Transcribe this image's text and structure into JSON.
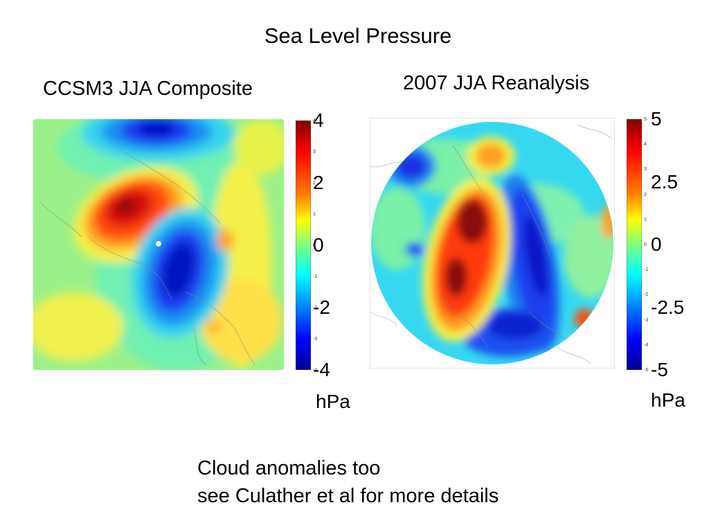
{
  "slide": {
    "title": "Sea Level Pressure",
    "note_lines": [
      "Cloud anomalies too",
      "see Culather et al for more details"
    ]
  },
  "left_panel": {
    "title": "CCSM3 JJA Composite",
    "colorbar": {
      "min": -4,
      "max": 4,
      "major_ticks": [
        "4",
        "2",
        "0",
        "-2",
        "-4"
      ],
      "minor_ticks": [
        "4",
        "3",
        "2",
        "1",
        "0",
        "-1",
        "-2",
        "-3",
        "-4"
      ],
      "unit": "hPa"
    }
  },
  "right_panel": {
    "title": "2007 JJA Reanalysis",
    "colorbar": {
      "min": -5,
      "max": 5,
      "major_ticks": [
        "5",
        "2.5",
        "0",
        "-2.5",
        "-5"
      ],
      "minor_ticks": [
        "5",
        "4",
        "3",
        "2",
        "1",
        "0",
        "-1",
        "-2",
        "-3",
        "-4",
        "-5"
      ],
      "unit": "hPa"
    }
  },
  "colors": {
    "jet": [
      "#00008f",
      "#0000ff",
      "#0080ff",
      "#00ffff",
      "#80ff80",
      "#ffff00",
      "#ff8000",
      "#ff0000",
      "#800000"
    ]
  }
}
